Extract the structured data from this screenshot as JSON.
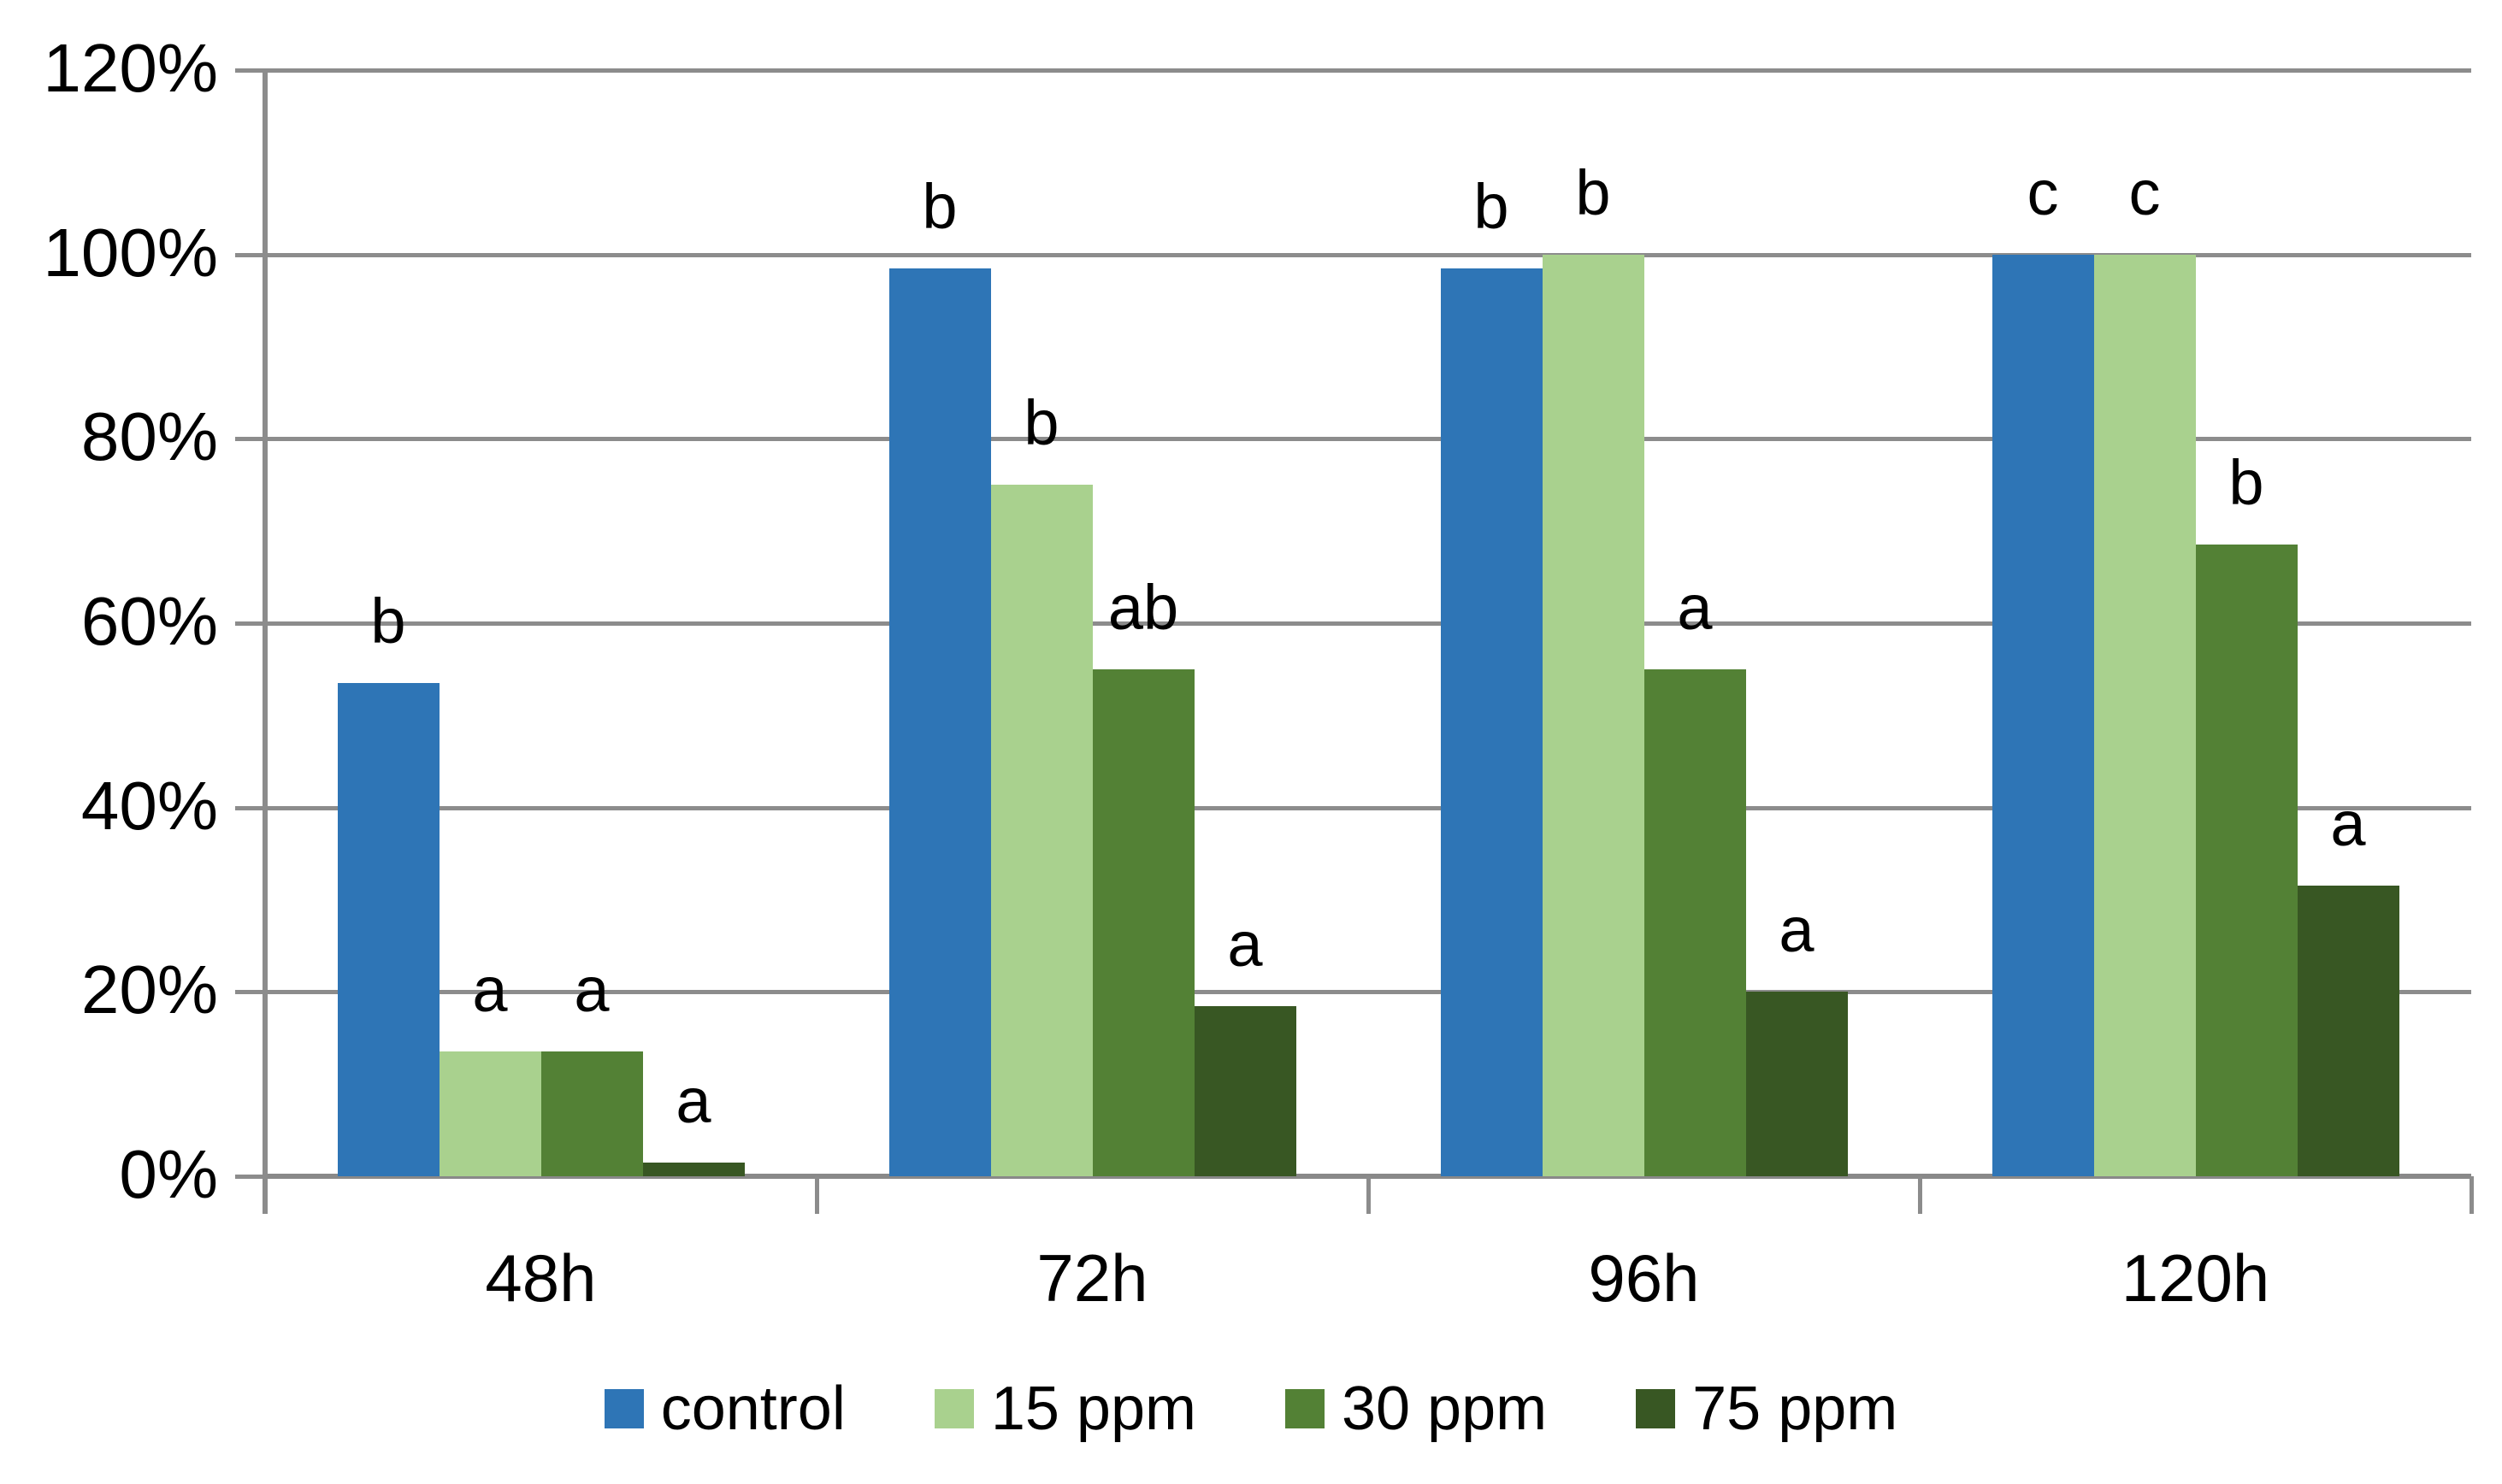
{
  "chart_data": {
    "type": "bar",
    "title": "",
    "xlabel": "",
    "ylabel": "",
    "categories": [
      "48h",
      "72h",
      "96h",
      "120h"
    ],
    "series": [
      {
        "name": "control",
        "color": "#2E75B6",
        "values": [
          53.5,
          98.5,
          98.5,
          100
        ],
        "letters": [
          "b",
          "b",
          "b",
          "c"
        ]
      },
      {
        "name": "15 ppm",
        "color": "#A9D18E",
        "values": [
          13.5,
          75,
          100,
          100
        ],
        "letters": [
          "a",
          "b",
          "b",
          "c"
        ]
      },
      {
        "name": "30 ppm",
        "color": "#538135",
        "values": [
          13.5,
          55,
          55,
          68.5
        ],
        "letters": [
          "a",
          "ab",
          "a",
          "b"
        ]
      },
      {
        "name": "75 ppm",
        "color": "#385723",
        "values": [
          1.5,
          18.5,
          20,
          31.5
        ],
        "letters": [
          "a",
          "a",
          "a",
          "a"
        ]
      }
    ],
    "y_axis": {
      "tick_labels": [
        "0%",
        "20%",
        "40%",
        "60%",
        "80%",
        "100%",
        "120%"
      ],
      "min": 0,
      "max": 120,
      "step": 20,
      "unit": "%"
    },
    "grid": true,
    "gridline_color": "#8C8C8C",
    "legend_position": "bottom",
    "annotation_note": "letters above bars are statistical significance groups"
  }
}
